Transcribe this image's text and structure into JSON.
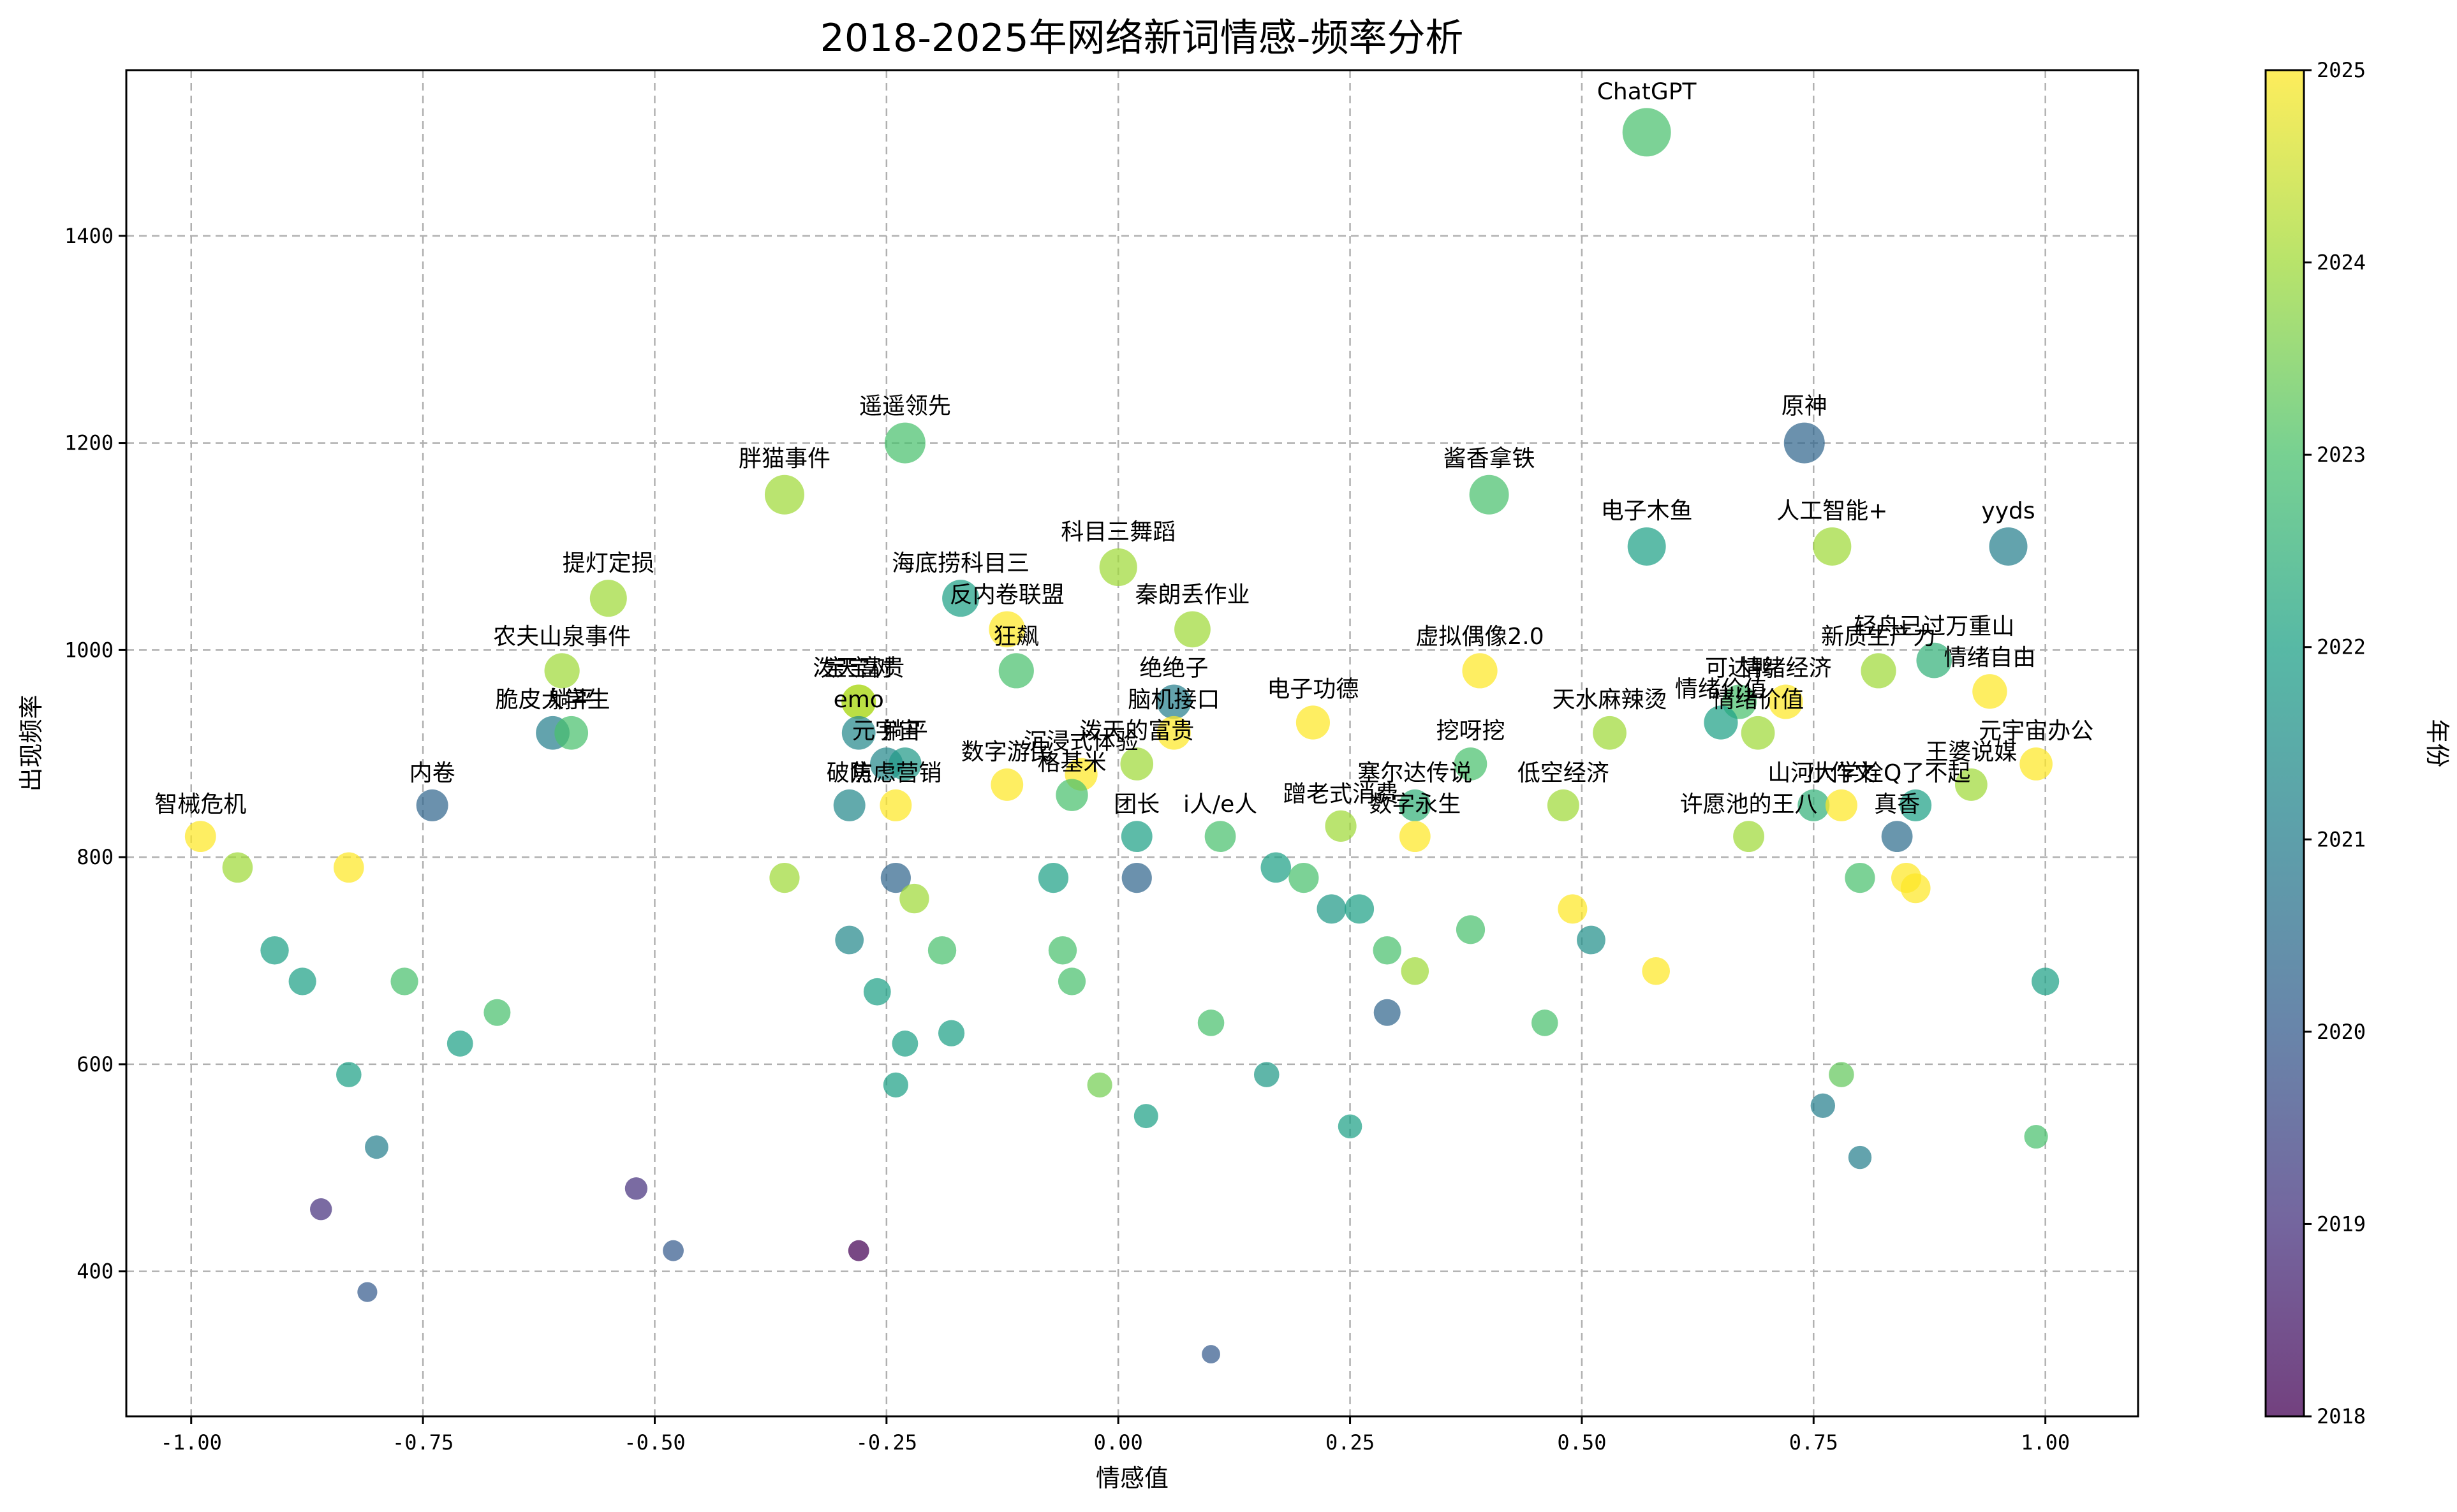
{
  "chart_data": {
    "type": "scatter",
    "title": "2018-2025年网络新词情感-频率分析",
    "xlabel": "情感值",
    "ylabel": "出现频率",
    "xlim": [
      -1.07,
      1.1
    ],
    "ylim": [
      260,
      1560
    ],
    "xticks": [
      -1.0,
      -0.75,
      -0.5,
      -0.25,
      0.0,
      0.25,
      0.5,
      0.75,
      1.0
    ],
    "xtick_labels": [
      "-1.00",
      "-0.75",
      "-0.50",
      "-0.25",
      "0.00",
      "0.25",
      "0.50",
      "0.75",
      "1.00"
    ],
    "yticks": [
      400,
      600,
      800,
      1000,
      1200,
      1400
    ],
    "ytick_labels": [
      "400",
      "600",
      "800",
      "1000",
      "1200",
      "1400"
    ],
    "grid": true,
    "colormap": "viridis",
    "colorbar": {
      "label": "年份",
      "range": [
        2018,
        2025
      ],
      "ticks": [
        "2018",
        "2019",
        "2020",
        "2021",
        "2022",
        "2023",
        "2024",
        "2025"
      ]
    },
    "points": [
      {
        "x": 0.57,
        "y": 1500,
        "year": 2023.0,
        "label": "ChatGPT"
      },
      {
        "x": -0.23,
        "y": 1200,
        "year": 2023.0,
        "label": "遥遥领先"
      },
      {
        "x": 0.74,
        "y": 1200,
        "year": 2020.3,
        "label": "原神"
      },
      {
        "x": -0.36,
        "y": 1150,
        "year": 2024.0,
        "label": "胖猫事件"
      },
      {
        "x": 0.4,
        "y": 1150,
        "year": 2023.0,
        "label": "酱香拿铁"
      },
      {
        "x": 0.57,
        "y": 1100,
        "year": 2022.0,
        "label": "电子木鱼"
      },
      {
        "x": 0.77,
        "y": 1100,
        "year": 2024.0,
        "label": "人工智能+"
      },
      {
        "x": 0.96,
        "y": 1100,
        "year": 2021.0,
        "label": "yyds"
      },
      {
        "x": 0.0,
        "y": 1080,
        "year": 2024.0,
        "label": "科目三舞蹈"
      },
      {
        "x": -0.55,
        "y": 1050,
        "year": 2024.0,
        "label": "提灯定损"
      },
      {
        "x": -0.17,
        "y": 1050,
        "year": 2022.0,
        "label": "海底捞科目三"
      },
      {
        "x": -0.12,
        "y": 1020,
        "year": 2025.0,
        "label": "反内卷联盟"
      },
      {
        "x": 0.08,
        "y": 1020,
        "year": 2024.0,
        "label": "秦朗丢作业"
      },
      {
        "x": -0.6,
        "y": 980,
        "year": 2024.0,
        "label": "农夫山泉事件"
      },
      {
        "x": -0.11,
        "y": 980,
        "year": 2023.0,
        "label": "狂飙"
      },
      {
        "x": 0.39,
        "y": 980,
        "year": 2025.0,
        "label": "虚拟偶像2.0"
      },
      {
        "x": 0.82,
        "y": 980,
        "year": 2024.0,
        "label": "新质生产力"
      },
      {
        "x": 0.88,
        "y": 990,
        "year": 2022.5,
        "label": "轻舟已过万重山"
      },
      {
        "x": 0.94,
        "y": 960,
        "year": 2025.0,
        "label": "情绪自由"
      },
      {
        "x": -0.28,
        "y": 950,
        "year": 2025.0,
        "label": "泼天富贵"
      },
      {
        "x": -0.28,
        "y": 950,
        "year": 2024.0,
        "label": "宝宝树"
      },
      {
        "x": 0.06,
        "y": 950,
        "year": 2021.0,
        "label": "绝绝子"
      },
      {
        "x": 0.72,
        "y": 950,
        "year": 2025.0,
        "label": "情绪经济"
      },
      {
        "x": 0.67,
        "y": 950,
        "year": 2023.0,
        "label": "可达鸭"
      },
      {
        "x": -0.61,
        "y": 920,
        "year": 2021.0,
        "label": "脆皮大学生"
      },
      {
        "x": -0.59,
        "y": 920,
        "year": 2023.0,
        "label": "躺平"
      },
      {
        "x": -0.28,
        "y": 920,
        "year": 2021.3,
        "label": "emo"
      },
      {
        "x": 0.06,
        "y": 920,
        "year": 2025.0,
        "label": "脑机接口"
      },
      {
        "x": 0.21,
        "y": 930,
        "year": 2025.0,
        "label": "电子功德"
      },
      {
        "x": 0.53,
        "y": 920,
        "year": 2024.0,
        "label": "天水麻辣烫"
      },
      {
        "x": 0.65,
        "y": 930,
        "year": 2022.0,
        "label": "情绪价值"
      },
      {
        "x": 0.69,
        "y": 920,
        "year": 2024.0,
        "label": "情绪价值"
      },
      {
        "x": -0.25,
        "y": 890,
        "year": 2021.3,
        "label": "元宇宙"
      },
      {
        "x": -0.23,
        "y": 890,
        "year": 2021.8,
        "label": "躺平"
      },
      {
        "x": 0.02,
        "y": 890,
        "year": 2024.0,
        "label": "泼天的富贵"
      },
      {
        "x": 0.38,
        "y": 890,
        "year": 2023.0,
        "label": "挖呀挖"
      },
      {
        "x": 0.99,
        "y": 890,
        "year": 2025.0,
        "label": "元宇宙办公"
      },
      {
        "x": -0.12,
        "y": 870,
        "year": 2025.0,
        "label": "数字游民"
      },
      {
        "x": -0.04,
        "y": 880,
        "year": 2025.0,
        "label": "沉浸式体验"
      },
      {
        "x": -0.05,
        "y": 860,
        "year": 2023.0,
        "label": "格基米"
      },
      {
        "x": 0.32,
        "y": 850,
        "year": 2022.5,
        "label": "塞尔达传说"
      },
      {
        "x": 0.48,
        "y": 850,
        "year": 2024.0,
        "label": "低空经济"
      },
      {
        "x": 0.92,
        "y": 870,
        "year": 2024.0,
        "label": "王婆说媒"
      },
      {
        "x": -0.29,
        "y": 850,
        "year": 2021.3,
        "label": "破防"
      },
      {
        "x": -0.24,
        "y": 850,
        "year": 2025.0,
        "label": "焦虑营销"
      },
      {
        "x": -0.74,
        "y": 850,
        "year": 2020.3,
        "label": "内卷"
      },
      {
        "x": 0.75,
        "y": 850,
        "year": 2022.5,
        "label": "山河大学"
      },
      {
        "x": 0.78,
        "y": 850,
        "year": 2025.0,
        "label": "小作文"
      },
      {
        "x": 0.86,
        "y": 850,
        "year": 2022.0,
        "label": "栓Q了不起"
      },
      {
        "x": -0.99,
        "y": 820,
        "year": 2025.0,
        "label": "智械危机"
      },
      {
        "x": 0.02,
        "y": 820,
        "year": 2022.0,
        "label": "团长"
      },
      {
        "x": 0.11,
        "y": 820,
        "year": 2023.0,
        "label": "i人/e人"
      },
      {
        "x": 0.24,
        "y": 830,
        "year": 2024.0,
        "label": "蹭老式消费"
      },
      {
        "x": 0.32,
        "y": 820,
        "year": 2025.0,
        "label": "数字永生"
      },
      {
        "x": 0.68,
        "y": 820,
        "year": 2024.0,
        "label": "许愿池的王八"
      },
      {
        "x": 0.84,
        "y": 820,
        "year": 2020.5,
        "label": "真香"
      },
      {
        "x": -0.95,
        "y": 790,
        "year": 2024.0,
        "label": ""
      },
      {
        "x": -0.83,
        "y": 790,
        "year": 2025.0,
        "label": ""
      },
      {
        "x": -0.36,
        "y": 780,
        "year": 2024.0,
        "label": ""
      },
      {
        "x": -0.24,
        "y": 780,
        "year": 2020.3,
        "label": ""
      },
      {
        "x": -0.22,
        "y": 760,
        "year": 2024.0,
        "label": ""
      },
      {
        "x": -0.07,
        "y": 780,
        "year": 2022.0,
        "label": ""
      },
      {
        "x": 0.02,
        "y": 780,
        "year": 2020.3,
        "label": ""
      },
      {
        "x": 0.17,
        "y": 790,
        "year": 2022.0,
        "label": ""
      },
      {
        "x": 0.2,
        "y": 780,
        "year": 2023.0,
        "label": ""
      },
      {
        "x": 0.23,
        "y": 750,
        "year": 2021.8,
        "label": ""
      },
      {
        "x": 0.26,
        "y": 750,
        "year": 2022.0,
        "label": ""
      },
      {
        "x": 0.49,
        "y": 750,
        "year": 2025.0,
        "label": ""
      },
      {
        "x": 0.8,
        "y": 780,
        "year": 2023.0,
        "label": ""
      },
      {
        "x": 0.85,
        "y": 780,
        "year": 2025.0,
        "label": ""
      },
      {
        "x": 0.86,
        "y": 770,
        "year": 2025.0,
        "label": ""
      },
      {
        "x": -0.91,
        "y": 710,
        "year": 2022.0,
        "label": ""
      },
      {
        "x": -0.88,
        "y": 680,
        "year": 2022.0,
        "label": ""
      },
      {
        "x": -0.77,
        "y": 680,
        "year": 2023.0,
        "label": ""
      },
      {
        "x": -0.67,
        "y": 650,
        "year": 2023.0,
        "label": ""
      },
      {
        "x": -0.71,
        "y": 620,
        "year": 2022.0,
        "label": ""
      },
      {
        "x": -0.29,
        "y": 720,
        "year": 2021.3,
        "label": ""
      },
      {
        "x": -0.26,
        "y": 670,
        "year": 2022.0,
        "label": ""
      },
      {
        "x": -0.19,
        "y": 710,
        "year": 2023.0,
        "label": ""
      },
      {
        "x": -0.23,
        "y": 620,
        "year": 2022.0,
        "label": ""
      },
      {
        "x": -0.18,
        "y": 630,
        "year": 2022.0,
        "label": ""
      },
      {
        "x": -0.06,
        "y": 710,
        "year": 2023.0,
        "label": ""
      },
      {
        "x": -0.05,
        "y": 680,
        "year": 2023.0,
        "label": ""
      },
      {
        "x": 0.29,
        "y": 710,
        "year": 2023.0,
        "label": ""
      },
      {
        "x": 0.32,
        "y": 690,
        "year": 2024.0,
        "label": ""
      },
      {
        "x": 0.38,
        "y": 730,
        "year": 2023.0,
        "label": ""
      },
      {
        "x": 0.51,
        "y": 720,
        "year": 2021.5,
        "label": ""
      },
      {
        "x": 0.58,
        "y": 690,
        "year": 2025.0,
        "label": ""
      },
      {
        "x": 1.0,
        "y": 680,
        "year": 2022.0,
        "label": ""
      },
      {
        "x": 0.1,
        "y": 640,
        "year": 2023.0,
        "label": ""
      },
      {
        "x": 0.29,
        "y": 650,
        "year": 2020.3,
        "label": ""
      },
      {
        "x": 0.46,
        "y": 640,
        "year": 2023.0,
        "label": ""
      },
      {
        "x": -0.83,
        "y": 590,
        "year": 2022.0,
        "label": ""
      },
      {
        "x": -0.24,
        "y": 580,
        "year": 2022.0,
        "label": ""
      },
      {
        "x": -0.02,
        "y": 580,
        "year": 2023.5,
        "label": ""
      },
      {
        "x": 0.03,
        "y": 550,
        "year": 2022.0,
        "label": ""
      },
      {
        "x": 0.16,
        "y": 590,
        "year": 2021.8,
        "label": ""
      },
      {
        "x": 0.25,
        "y": 540,
        "year": 2022.0,
        "label": ""
      },
      {
        "x": 0.78,
        "y": 590,
        "year": 2023.3,
        "label": ""
      },
      {
        "x": 0.76,
        "y": 560,
        "year": 2021.0,
        "label": ""
      },
      {
        "x": 0.99,
        "y": 530,
        "year": 2023.0,
        "label": ""
      },
      {
        "x": -0.8,
        "y": 520,
        "year": 2021.0,
        "label": ""
      },
      {
        "x": 0.8,
        "y": 510,
        "year": 2021.0,
        "label": ""
      },
      {
        "x": -0.52,
        "y": 480,
        "year": 2019.0,
        "label": ""
      },
      {
        "x": -0.86,
        "y": 460,
        "year": 2019.0,
        "label": ""
      },
      {
        "x": -0.48,
        "y": 420,
        "year": 2020.0,
        "label": ""
      },
      {
        "x": -0.28,
        "y": 420,
        "year": 2018.0,
        "label": ""
      },
      {
        "x": -0.81,
        "y": 380,
        "year": 2020.0,
        "label": ""
      },
      {
        "x": 0.1,
        "y": 320,
        "year": 2020.0,
        "label": ""
      }
    ]
  }
}
